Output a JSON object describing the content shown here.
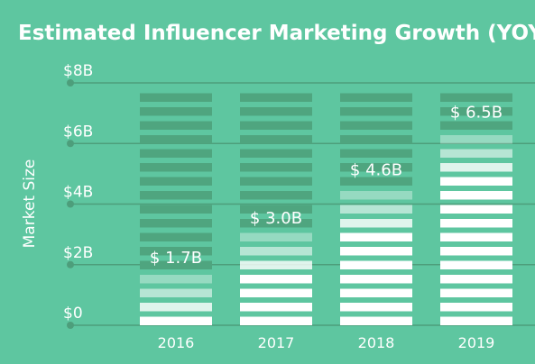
{
  "chart_data": {
    "type": "bar",
    "title": "Estimated Influencer Marketing Growth (YOY)",
    "xlabel": "",
    "ylabel": "Market Size",
    "categories": [
      "2016",
      "2017",
      "2018",
      "2019"
    ],
    "values": [
      1.7,
      3.0,
      4.6,
      6.5
    ],
    "value_labels": [
      "$ 1.7B",
      "$ 3.0B",
      "$ 4.6B",
      "$ 6.5B"
    ],
    "ylim": [
      0,
      8
    ],
    "yticks": [
      {
        "value": 0,
        "label": "$0"
      },
      {
        "value": 2,
        "label": "$2B"
      },
      {
        "value": 4,
        "label": "$4B"
      },
      {
        "value": 6,
        "label": "$6B"
      },
      {
        "value": 8,
        "label": "$8B"
      }
    ],
    "grid": true,
    "legend": "none",
    "colors": {
      "background": "#5ec6a0",
      "stripe_empty": "#4fa57f",
      "stripe_filled": "#ffffff",
      "grid": "#4d9e7b"
    }
  }
}
